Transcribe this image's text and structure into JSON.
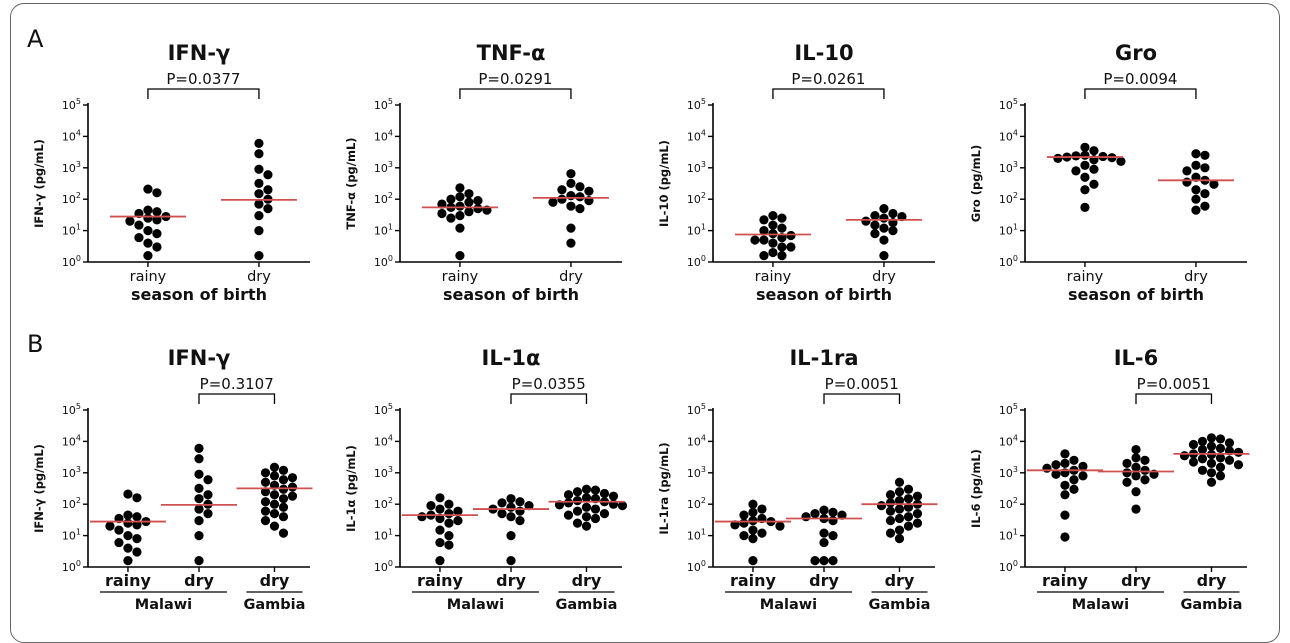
{
  "panel_labels": [
    "A",
    "B"
  ],
  "colors": {
    "points": "#000000",
    "median": "#d05050",
    "axis": "#000000",
    "frame": "#666666"
  },
  "chart_data": [
    {
      "type": "scatter",
      "panel": "A",
      "title": "IFN-γ",
      "ylabel": "IFN-γ (pg/mL)",
      "yscale": "log",
      "ylim": [
        1,
        100000
      ],
      "ytick_labels": [
        {
          "b": "10",
          "e": "0"
        },
        {
          "b": "10",
          "e": "1"
        },
        {
          "b": "10",
          "e": "2"
        },
        {
          "b": "10",
          "e": "3"
        },
        {
          "b": "10",
          "e": "4"
        },
        {
          "b": "10",
          "e": "5"
        }
      ],
      "categories": [
        "rainy",
        "dry"
      ],
      "category_bold": false,
      "xlabel": "season of birth",
      "groups": [],
      "series": [
        {
          "name": "rainy",
          "median": 28,
          "values": [
            160,
            210,
            28,
            40,
            45,
            35,
            22,
            25,
            20,
            15,
            10,
            8,
            6,
            4,
            3,
            1.6
          ]
        },
        {
          "name": "dry",
          "median": 95,
          "values": [
            6000,
            2800,
            900,
            600,
            320,
            200,
            150,
            100,
            70,
            50,
            30,
            10,
            1.6
          ]
        }
      ],
      "comparison": {
        "groups": [
          0,
          1
        ],
        "label": "P=0.0377"
      }
    },
    {
      "type": "scatter",
      "panel": "A",
      "title": "TNF-α",
      "ylabel": "TNF-α (pg/mL)",
      "yscale": "log",
      "ylim": [
        1,
        100000
      ],
      "ytick_labels": [
        {
          "b": "10",
          "e": "0"
        },
        {
          "b": "10",
          "e": "1"
        },
        {
          "b": "10",
          "e": "2"
        },
        {
          "b": "10",
          "e": "3"
        },
        {
          "b": "10",
          "e": "4"
        },
        {
          "b": "10",
          "e": "5"
        }
      ],
      "categories": [
        "rainy",
        "dry"
      ],
      "category_bold": false,
      "xlabel": "season of birth",
      "groups": [],
      "series": [
        {
          "name": "rainy",
          "median": 55,
          "values": [
            230,
            150,
            120,
            100,
            90,
            80,
            70,
            60,
            55,
            50,
            45,
            40,
            35,
            30,
            25,
            12,
            1.6
          ]
        },
        {
          "name": "dry",
          "median": 110,
          "values": [
            650,
            320,
            250,
            200,
            180,
            130,
            120,
            100,
            90,
            80,
            60,
            50,
            12,
            4
          ]
        }
      ],
      "comparison": {
        "groups": [
          0,
          1
        ],
        "label": "P=0.0291"
      }
    },
    {
      "type": "scatter",
      "panel": "A",
      "title": "IL-10",
      "ylabel": "IL-10 (pg/mL)",
      "yscale": "log",
      "ylim": [
        1,
        100000
      ],
      "ytick_labels": [
        {
          "b": "10",
          "e": "0"
        },
        {
          "b": "10",
          "e": "1"
        },
        {
          "b": "10",
          "e": "2"
        },
        {
          "b": "10",
          "e": "3"
        },
        {
          "b": "10",
          "e": "4"
        },
        {
          "b": "10",
          "e": "5"
        }
      ],
      "categories": [
        "rainy",
        "dry"
      ],
      "category_bold": false,
      "xlabel": "season of birth",
      "groups": [],
      "series": [
        {
          "name": "rainy",
          "median": 7.5,
          "values": [
            30,
            25,
            22,
            15,
            12,
            10,
            8,
            7,
            6,
            5,
            5,
            4,
            3,
            3,
            2,
            1.6,
            1.6
          ]
        },
        {
          "name": "dry",
          "median": 22,
          "values": [
            50,
            35,
            30,
            28,
            25,
            20,
            18,
            15,
            12,
            10,
            8,
            5,
            1.6
          ]
        }
      ],
      "comparison": {
        "groups": [
          0,
          1
        ],
        "label": "P=0.0261"
      }
    },
    {
      "type": "scatter",
      "panel": "A",
      "title": "Gro",
      "ylabel": "Gro (pg/mL)",
      "yscale": "log",
      "ylim": [
        1,
        100000
      ],
      "ytick_labels": [
        {
          "b": "10",
          "e": "0"
        },
        {
          "b": "10",
          "e": "1"
        },
        {
          "b": "10",
          "e": "2"
        },
        {
          "b": "10",
          "e": "3"
        },
        {
          "b": "10",
          "e": "4"
        },
        {
          "b": "10",
          "e": "5"
        }
      ],
      "categories": [
        "rainy",
        "dry"
      ],
      "category_bold": false,
      "xlabel": "season of birth",
      "groups": [],
      "series": [
        {
          "name": "rainy",
          "median": 2200,
          "values": [
            4500,
            3500,
            2500,
            2400,
            2300,
            2200,
            2100,
            2000,
            1800,
            1600,
            1200,
            900,
            800,
            500,
            300,
            200,
            55
          ]
        },
        {
          "name": "dry",
          "median": 400,
          "values": [
            2800,
            2500,
            1200,
            1000,
            800,
            500,
            400,
            350,
            300,
            200,
            150,
            100,
            60,
            45
          ]
        }
      ],
      "comparison": {
        "groups": [
          0,
          1
        ],
        "label": "P=0.0094"
      }
    },
    {
      "type": "scatter",
      "panel": "B",
      "title": "IFN-γ",
      "ylabel": "IFN-γ (pg/mL)",
      "yscale": "log",
      "ylim": [
        1,
        100000
      ],
      "ytick_labels": [
        {
          "b": "10",
          "e": "0"
        },
        {
          "b": "10",
          "e": "1"
        },
        {
          "b": "10",
          "e": "2"
        },
        {
          "b": "10",
          "e": "3"
        },
        {
          "b": "10",
          "e": "4"
        },
        {
          "b": "10",
          "e": "5"
        }
      ],
      "categories": [
        "rainy",
        "dry",
        "dry"
      ],
      "category_bold": true,
      "xlabel": "",
      "groups": [
        {
          "label": "Malawi",
          "from": 0,
          "to": 1
        },
        {
          "label": "Gambia",
          "from": 2,
          "to": 2
        }
      ],
      "series": [
        {
          "name": "rainy",
          "median": 28,
          "values": [
            160,
            210,
            28,
            40,
            45,
            35,
            22,
            25,
            20,
            15,
            10,
            8,
            6,
            4,
            3,
            1.6
          ]
        },
        {
          "name": "dry",
          "median": 95,
          "values": [
            6000,
            2800,
            900,
            600,
            320,
            200,
            150,
            100,
            70,
            50,
            30,
            10,
            1.6
          ]
        },
        {
          "name": "dry",
          "median": 320,
          "values": [
            1500,
            1200,
            1000,
            800,
            700,
            600,
            500,
            400,
            350,
            300,
            250,
            200,
            180,
            150,
            120,
            100,
            80,
            60,
            50,
            40,
            30,
            20,
            12
          ]
        }
      ],
      "comparison": {
        "groups": [
          1,
          2
        ],
        "label": "P=0.3107"
      }
    },
    {
      "type": "scatter",
      "panel": "B",
      "title": "IL-1α",
      "ylabel": "IL-1α (pg/mL)",
      "yscale": "log",
      "ylim": [
        1,
        100000
      ],
      "ytick_labels": [
        {
          "b": "10",
          "e": "0"
        },
        {
          "b": "10",
          "e": "1"
        },
        {
          "b": "10",
          "e": "2"
        },
        {
          "b": "10",
          "e": "3"
        },
        {
          "b": "10",
          "e": "4"
        },
        {
          "b": "10",
          "e": "5"
        }
      ],
      "categories": [
        "rainy",
        "dry",
        "dry"
      ],
      "category_bold": true,
      "xlabel": "",
      "groups": [
        {
          "label": "Malawi",
          "from": 0,
          "to": 1
        },
        {
          "label": "Gambia",
          "from": 2,
          "to": 2
        }
      ],
      "series": [
        {
          "name": "rainy",
          "median": 45,
          "values": [
            160,
            100,
            90,
            70,
            60,
            50,
            45,
            40,
            35,
            30,
            25,
            15,
            10,
            6,
            5,
            1.6
          ]
        },
        {
          "name": "dry",
          "median": 70,
          "values": [
            150,
            120,
            110,
            90,
            80,
            70,
            60,
            50,
            40,
            30,
            10,
            1.6
          ]
        },
        {
          "name": "dry",
          "median": 120,
          "values": [
            300,
            280,
            250,
            220,
            200,
            180,
            160,
            150,
            130,
            120,
            110,
            100,
            95,
            90,
            80,
            70,
            60,
            50,
            45,
            40,
            35,
            25,
            20
          ]
        }
      ],
      "comparison": {
        "groups": [
          1,
          2
        ],
        "label": "P=0.0355"
      }
    },
    {
      "type": "scatter",
      "panel": "B",
      "title": "IL-1ra",
      "ylabel": "IL-1ra (pg/mL)",
      "yscale": "log",
      "ylim": [
        1,
        100000
      ],
      "ytick_labels": [
        {
          "b": "10",
          "e": "0"
        },
        {
          "b": "10",
          "e": "1"
        },
        {
          "b": "10",
          "e": "2"
        },
        {
          "b": "10",
          "e": "3"
        },
        {
          "b": "10",
          "e": "4"
        },
        {
          "b": "10",
          "e": "5"
        }
      ],
      "categories": [
        "rainy",
        "dry",
        "dry"
      ],
      "category_bold": true,
      "xlabel": "",
      "groups": [
        {
          "label": "Malawi",
          "from": 0,
          "to": 1
        },
        {
          "label": "Gambia",
          "from": 2,
          "to": 2
        }
      ],
      "series": [
        {
          "name": "rainy",
          "median": 28,
          "values": [
            100,
            70,
            55,
            45,
            35,
            30,
            28,
            25,
            22,
            20,
            15,
            12,
            10,
            8,
            1.6
          ]
        },
        {
          "name": "dry",
          "median": 35,
          "values": [
            65,
            55,
            50,
            45,
            40,
            35,
            30,
            12,
            10,
            6,
            1.6,
            1.6,
            1.6
          ]
        },
        {
          "name": "dry",
          "median": 100,
          "values": [
            500,
            300,
            250,
            200,
            180,
            150,
            130,
            110,
            100,
            90,
            80,
            70,
            60,
            50,
            40,
            35,
            30,
            25,
            20,
            15,
            12,
            8
          ]
        }
      ],
      "comparison": {
        "groups": [
          1,
          2
        ],
        "label": "P=0.0051"
      }
    },
    {
      "type": "scatter",
      "panel": "B",
      "title": "IL-6",
      "ylabel": "IL-6 (pg/mL)",
      "yscale": "log",
      "ylim": [
        1,
        100000
      ],
      "ytick_labels": [
        {
          "b": "10",
          "e": "0"
        },
        {
          "b": "10",
          "e": "1"
        },
        {
          "b": "10",
          "e": "2"
        },
        {
          "b": "10",
          "e": "3"
        },
        {
          "b": "10",
          "e": "4"
        },
        {
          "b": "10",
          "e": "5"
        }
      ],
      "categories": [
        "rainy",
        "dry",
        "dry"
      ],
      "category_bold": true,
      "xlabel": "",
      "groups": [
        {
          "label": "Malawi",
          "from": 0,
          "to": 1
        },
        {
          "label": "Gambia",
          "from": 2,
          "to": 2
        }
      ],
      "series": [
        {
          "name": "rainy",
          "median": 1200,
          "values": [
            4000,
            2500,
            2000,
            1800,
            1600,
            1400,
            1200,
            1000,
            900,
            800,
            600,
            400,
            300,
            200,
            45,
            9
          ]
        },
        {
          "name": "dry",
          "median": 1100,
          "values": [
            5500,
            3000,
            2500,
            2000,
            1500,
            1200,
            1000,
            900,
            800,
            600,
            500,
            250,
            70
          ]
        },
        {
          "name": "dry",
          "median": 4000,
          "values": [
            13000,
            12000,
            10000,
            9000,
            8000,
            7000,
            6000,
            5500,
            5000,
            4500,
            4000,
            3800,
            3500,
            3000,
            2800,
            2500,
            2200,
            2000,
            1800,
            1500,
            1200,
            1000,
            800,
            500
          ]
        }
      ],
      "comparison": {
        "groups": [
          1,
          2
        ],
        "label": "P=0.0051"
      }
    }
  ]
}
